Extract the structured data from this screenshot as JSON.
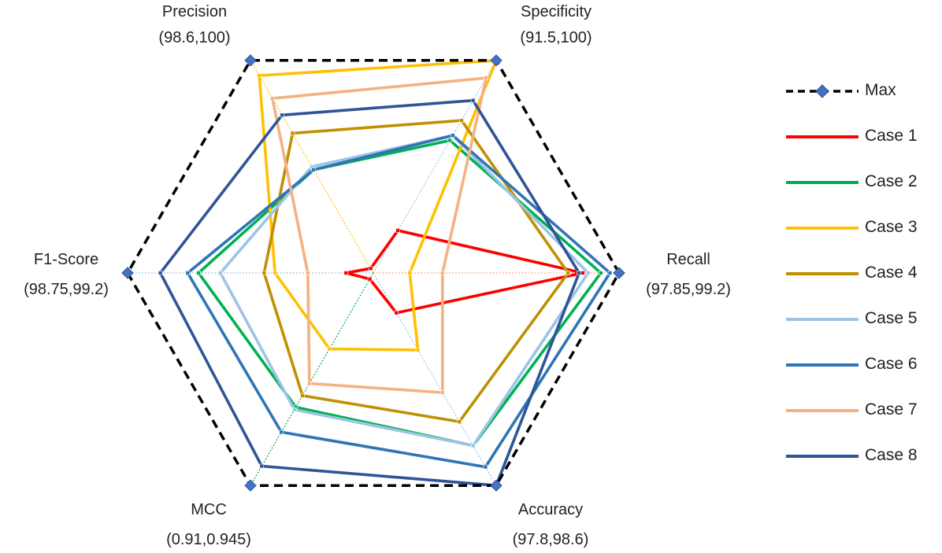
{
  "chart_data": {
    "type": "radar",
    "axes": [
      {
        "name": "Recall",
        "range": "(97.85,99.2)",
        "min": 97.85,
        "max": 99.2
      },
      {
        "name": "Specificity",
        "range": "(91.5,100)",
        "min": 91.5,
        "max": 100
      },
      {
        "name": "Precision",
        "range": "(98.6,100)",
        "min": 98.6,
        "max": 100
      },
      {
        "name": "F1-Score",
        "range": "(98.75,99.2)",
        "min": 98.75,
        "max": 99.2
      },
      {
        "name": "MCC",
        "range": "(0.91,0.945)",
        "min": 0.91,
        "max": 0.945
      },
      {
        "name": "Accuracy",
        "range": "(97.8,98.6)",
        "min": 97.8,
        "max": 98.6
      }
    ],
    "series": [
      {
        "name": "Max",
        "color": "#000000",
        "dashed": true,
        "marker": "diamond",
        "values": [
          99.2,
          100,
          100,
          99.2,
          0.945,
          98.6
        ]
      },
      {
        "name": "Case 1",
        "color": "#FF0000",
        "values": [
          99.0,
          93.2,
          98.63,
          98.8,
          0.911,
          97.95
        ]
      },
      {
        "name": "Case 2",
        "color": "#00B050",
        "values": [
          99.1,
          96.8,
          99.28,
          99.07,
          0.9321,
          98.45
        ]
      },
      {
        "name": "Case 3",
        "color": "#FFC000",
        "values": [
          98.05,
          100,
          99.9,
          98.93,
          0.9225,
          98.09
        ]
      },
      {
        "name": "Case 4",
        "color": "#BF9000",
        "values": [
          98.92,
          97.6,
          99.52,
          98.95,
          0.9302,
          98.36
        ]
      },
      {
        "name": "Case 5",
        "color": "#9DC3E6",
        "values": [
          99.03,
          97.0,
          99.3,
          99.03,
          0.9325,
          98.45
        ]
      },
      {
        "name": "Case 6",
        "color": "#2E75B6",
        "values": [
          99.15,
          97.0,
          99.28,
          99.09,
          0.9362,
          98.53
        ]
      },
      {
        "name": "Case 7",
        "color": "#F4B183",
        "values": [
          98.23,
          99.3,
          99.75,
          98.87,
          0.9282,
          98.25
        ]
      },
      {
        "name": "Case 8",
        "color": "#2F5597",
        "values": [
          98.98,
          98.4,
          99.64,
          99.14,
          0.9418,
          98.6
        ]
      }
    ]
  }
}
